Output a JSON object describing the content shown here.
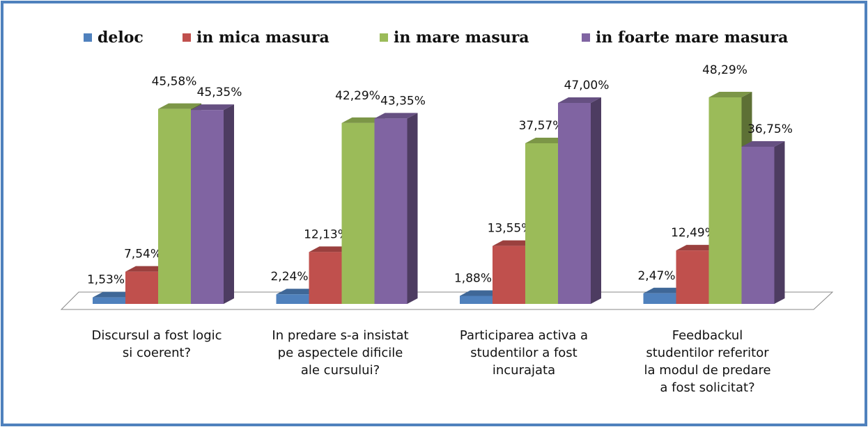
{
  "chart_data": {
    "type": "bar3d",
    "categories": [
      "Discursul a fost logic\nsi coerent?",
      "In predare s-a insistat\npe aspectele dificile\nale cursului?",
      "Participarea activa a\nstudentilor a fost\nincurajata",
      "Feedbackul\nstudentilor referitor\nla modul de predare\na fost solicitat?"
    ],
    "series": [
      {
        "name": "deloc",
        "color": "#4f81bd",
        "values": [
          1.53,
          2.24,
          1.88,
          2.47
        ],
        "value_labels": [
          "1,53%",
          "2,24%",
          "1,88%",
          "2,47%"
        ]
      },
      {
        "name": "in mica masura",
        "color": "#c0504d",
        "values": [
          7.54,
          12.13,
          13.55,
          12.49
        ],
        "value_labels": [
          "7,54%",
          "12,13%",
          "13,55%",
          "12,49%"
        ]
      },
      {
        "name": "in mare masura",
        "color": "#9bbb59",
        "values": [
          45.58,
          42.29,
          37.57,
          48.29
        ],
        "value_labels": [
          "45,58%",
          "42,29%",
          "37,57%",
          "48,29%"
        ]
      },
      {
        "name": "in foarte mare masura",
        "color": "#8064a2",
        "values": [
          45.35,
          43.35,
          47.0,
          36.75
        ],
        "value_labels": [
          "45,35%",
          "43,35%",
          "47,00%",
          "36,75%"
        ]
      }
    ],
    "legend": "top"
  }
}
